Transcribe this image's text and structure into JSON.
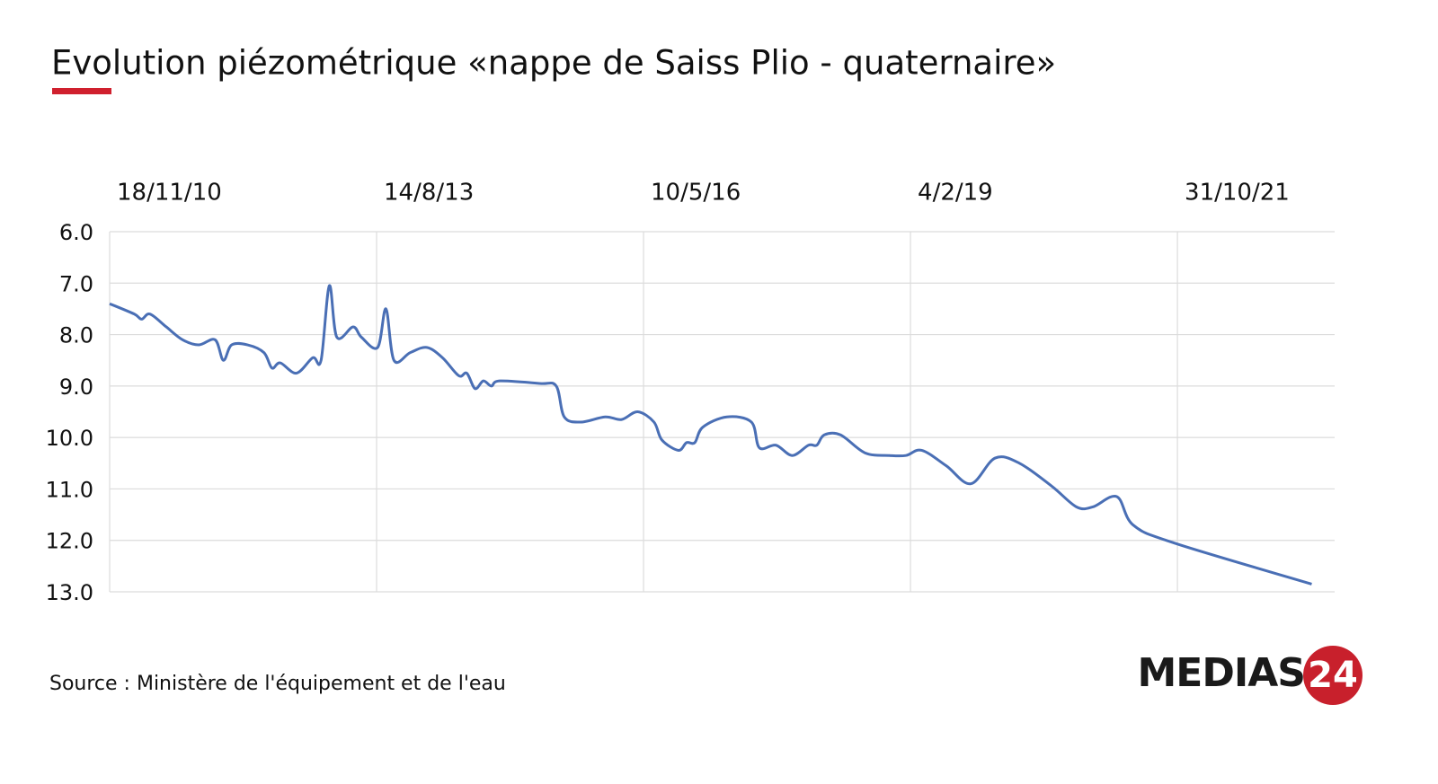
{
  "chart_data": {
    "type": "line",
    "title": "Evolution piézométrique «nappe de Saiss Plio - quaternaire»",
    "source": "Source : Ministère de l'équipement et de l'eau",
    "logo": {
      "text": "MEDIAS",
      "badge": "24"
    },
    "x": [
      "18/11/10",
      "18/2/11",
      "18/3/11",
      "18/4/11",
      "18/6/11",
      "18/8/11",
      "18/10/11",
      "18/12/11",
      "18/1/12",
      "18/2/12",
      "18/4/12",
      "18/6/12",
      "18/7/12",
      "18/8/12",
      "18/10/12",
      "18/12/12",
      "18/1/13",
      "18/2/13",
      "18/3/13",
      "18/5/13",
      "18/6/13",
      "18/8/13",
      "18/9/13",
      "18/10/13",
      "18/12/13",
      "18/2/14",
      "18/4/14",
      "18/6/14",
      "18/7/14",
      "18/8/14",
      "18/9/14",
      "18/10/14",
      "18/11/14",
      "18/4/15",
      "18/6/15",
      "18/7/15",
      "18/9/15",
      "18/12/15",
      "18/2/16",
      "18/4/16",
      "18/6/16",
      "18/7/16",
      "18/9/16",
      "18/10/16",
      "18/11/16",
      "18/12/16",
      "18/3/17",
      "18/6/17",
      "18/7/17",
      "18/9/17",
      "18/11/17",
      "18/1/18",
      "18/2/18",
      "18/3/18",
      "18/5/18",
      "18/8/18",
      "18/11/18",
      "18/1/19",
      "18/3/19",
      "18/6/19",
      "18/9/19",
      "18/12/19",
      "18/3/20",
      "18/7/20",
      "18/10/20",
      "18/12/20",
      "18/3/21",
      "18/5/21",
      "18/10/21",
      "18/3/23"
    ],
    "series": [
      {
        "name": "nappe de Saiss Plio - quaternaire",
        "color": "#4a6fb5",
        "values": [
          7.4,
          7.6,
          7.7,
          7.6,
          7.85,
          8.1,
          8.2,
          8.1,
          8.5,
          8.2,
          8.2,
          8.35,
          8.65,
          8.55,
          8.75,
          8.45,
          8.5,
          7.05,
          8.05,
          7.85,
          8.05,
          8.25,
          7.5,
          8.5,
          8.35,
          8.25,
          8.45,
          8.8,
          8.75,
          9.05,
          8.9,
          9.0,
          8.9,
          8.95,
          9.0,
          9.6,
          9.7,
          9.6,
          9.65,
          9.5,
          9.7,
          10.05,
          10.25,
          10.1,
          10.1,
          9.8,
          9.6,
          9.7,
          10.2,
          10.15,
          10.35,
          10.15,
          10.15,
          9.95,
          9.95,
          10.3,
          10.35,
          10.35,
          10.25,
          10.55,
          10.9,
          10.4,
          10.5,
          10.95,
          11.35,
          11.35,
          11.15,
          11.7,
          12.05,
          12.85
        ]
      }
    ],
    "xlim": [
      "18/11/10",
      "12/6/23"
    ],
    "xticks": [
      "18/11/10",
      "14/8/13",
      "10/5/16",
      "4/2/19",
      "31/10/21"
    ],
    "ylim": [
      13,
      6
    ],
    "yticks": [
      {
        "value": 6,
        "label": "6.0"
      },
      {
        "value": 7,
        "label": "7.0"
      },
      {
        "value": 8,
        "label": "8.0"
      },
      {
        "value": 9,
        "label": "9.0"
      },
      {
        "value": 10,
        "label": "10.0"
      },
      {
        "value": 11,
        "label": "11.0"
      },
      {
        "value": 12,
        "label": "12.0"
      },
      {
        "value": 13,
        "label": "13.0"
      }
    ],
    "grid": true
  }
}
